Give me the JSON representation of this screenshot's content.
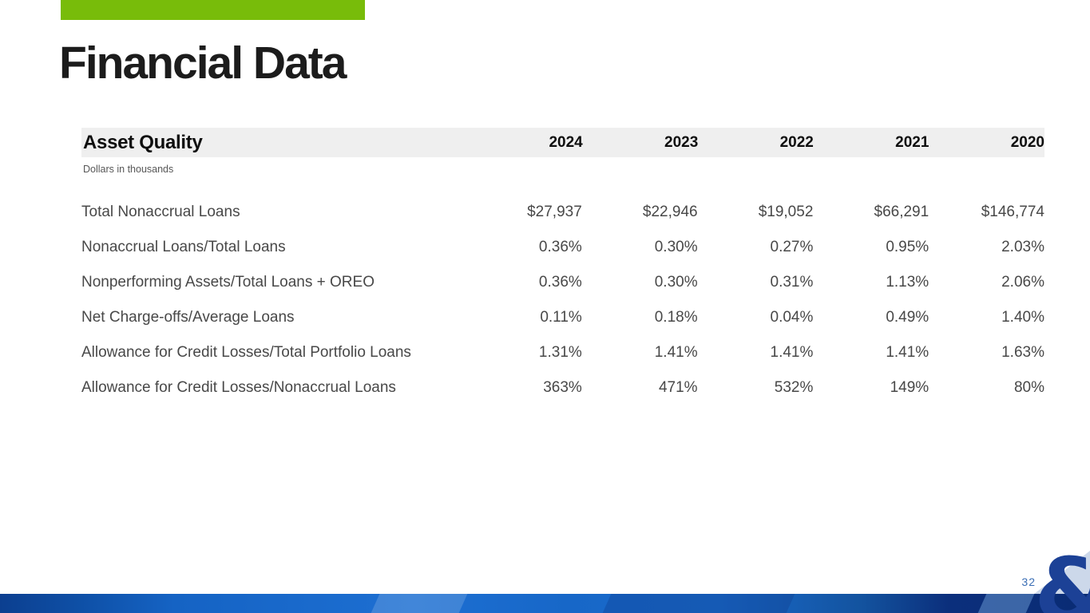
{
  "slide": {
    "title": "Financial Data",
    "page_number": "32",
    "logo_glyph": "&"
  },
  "table": {
    "header": "Asset Quality",
    "subtitle": "Dollars in thousands",
    "years": [
      "2024",
      "2023",
      "2022",
      "2021",
      "2020"
    ],
    "rows": [
      {
        "label": "Total Nonaccrual Loans",
        "values": [
          "$27,937",
          "$22,946",
          "$19,052",
          "$66,291",
          "$146,774"
        ]
      },
      {
        "label": "Nonaccrual Loans/Total Loans",
        "values": [
          "0.36%",
          "0.30%",
          "0.27%",
          "0.95%",
          "2.03%"
        ]
      },
      {
        "label": "Nonperforming Assets/Total Loans + OREO",
        "values": [
          "0.36%",
          "0.30%",
          "0.31%",
          "1.13%",
          "2.06%"
        ]
      },
      {
        "label": "Net Charge-offs/Average Loans",
        "values": [
          "0.11%",
          "0.18%",
          "0.04%",
          "0.49%",
          "1.40%"
        ]
      },
      {
        "label": "Allowance for Credit Losses/Total Portfolio Loans",
        "values": [
          "1.31%",
          "1.41%",
          "1.41%",
          "1.41%",
          "1.63%"
        ]
      },
      {
        "label": "Allowance for Credit Losses/Nonaccrual Loans",
        "values": [
          "363%",
          "471%",
          "532%",
          "149%",
          "80%"
        ]
      }
    ]
  },
  "colors": {
    "accent_green": "#78bc0a",
    "header_band_gray": "#efefef",
    "body_text": "#484848",
    "page_number_blue": "#3a6eb5",
    "logo_blue": "#1c4196",
    "footer_blue_dark": "#0a2c74",
    "footer_blue_bright": "#1d6fd2"
  }
}
